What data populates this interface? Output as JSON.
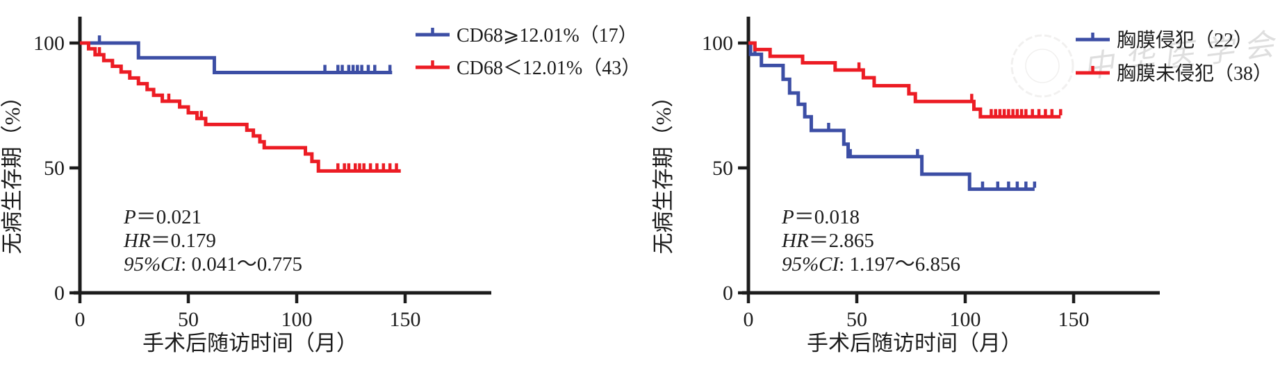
{
  "figure": {
    "background": "#ffffff",
    "axis_color": "#1c1c1c"
  },
  "chart_data": [
    {
      "type": "line",
      "kind": "kaplan-meier-step",
      "title": "",
      "xlabel": "手术后随访时间（月）",
      "ylabel": "无病生存期（%）",
      "x_ticks": [
        0,
        50,
        100,
        150
      ],
      "y_ticks": [
        0,
        50,
        100
      ],
      "xlim": [
        0,
        190
      ],
      "ylim": [
        0,
        110
      ],
      "grid": false,
      "legend_position": "top-right",
      "legend": [
        {
          "label": "CD68⩾12.01%（17）",
          "color": "#3c4ea5"
        },
        {
          "label": "CD68＜12.01%（43）",
          "color": "#ec1c24"
        }
      ],
      "stats": [
        {
          "k": "P",
          "v": "＝0.021"
        },
        {
          "k": "HR",
          "v": "＝0.179"
        },
        {
          "k": "95%CI",
          "v": ": 0.041～0.775"
        }
      ],
      "series": [
        {
          "name": "CD68⩾12.01%",
          "n": 17,
          "color": "#3c4ea5",
          "steps": [
            [
              0,
              100
            ],
            [
              27,
              94.1
            ],
            [
              62,
              88.2
            ],
            [
              144,
              88.2
            ]
          ],
          "censors": [
            [
              9,
              100
            ],
            [
              113,
              88.2
            ],
            [
              119,
              88.2
            ],
            [
              121,
              88.2
            ],
            [
              124,
              88.2
            ],
            [
              126,
              88.2
            ],
            [
              128,
              88.2
            ],
            [
              130,
              88.2
            ],
            [
              133,
              88.2
            ],
            [
              136,
              88.2
            ],
            [
              143,
              88.2
            ]
          ]
        },
        {
          "name": "CD68＜12.01%",
          "n": 43,
          "color": "#ec1c24",
          "steps": [
            [
              0,
              100
            ],
            [
              4,
              97.7
            ],
            [
              7,
              95.3
            ],
            [
              11,
              93
            ],
            [
              15,
              90.7
            ],
            [
              19,
              88.4
            ],
            [
              23,
              86
            ],
            [
              27,
              83.7
            ],
            [
              31,
              81.4
            ],
            [
              34,
              79.1
            ],
            [
              38,
              76.7
            ],
            [
              46,
              74.4
            ],
            [
              50,
              72.1
            ],
            [
              54,
              69.8
            ],
            [
              58,
              67.4
            ],
            [
              77,
              65.1
            ],
            [
              80,
              62.8
            ],
            [
              83,
              60.5
            ],
            [
              85,
              58.1
            ],
            [
              104,
              55.6
            ],
            [
              107,
              52.6
            ],
            [
              110,
              48.8
            ],
            [
              148,
              48.8
            ]
          ],
          "censors": [
            [
              9,
              95.3
            ],
            [
              41,
              76.7
            ],
            [
              56,
              69.8
            ],
            [
              119,
              48.8
            ],
            [
              122,
              48.8
            ],
            [
              124,
              48.8
            ],
            [
              127,
              48.8
            ],
            [
              129,
              48.8
            ],
            [
              131,
              48.8
            ],
            [
              134,
              48.8
            ],
            [
              137,
              48.8
            ],
            [
              140,
              48.8
            ],
            [
              143,
              48.8
            ],
            [
              146,
              48.8
            ]
          ]
        }
      ]
    },
    {
      "type": "line",
      "kind": "kaplan-meier-step",
      "title": "",
      "xlabel": "手术后随访时间（月）",
      "ylabel": "无病生存期（%）",
      "x_ticks": [
        0,
        50,
        100,
        150
      ],
      "y_ticks": [
        0,
        50,
        100
      ],
      "xlim": [
        0,
        190
      ],
      "ylim": [
        0,
        110
      ],
      "grid": false,
      "legend_position": "top-right",
      "legend": [
        {
          "label": "胸膜侵犯（22）",
          "color": "#3c4ea5"
        },
        {
          "label": "胸膜未侵犯（38）",
          "color": "#ec1c24"
        }
      ],
      "stats": [
        {
          "k": "P",
          "v": "＝0.018"
        },
        {
          "k": "HR",
          "v": "＝2.865"
        },
        {
          "k": "95%CI",
          "v": ": 1.197～6.856"
        }
      ],
      "watermark": {
        "seal": true,
        "script_text": "中华医学会",
        "color": "#a39d97",
        "opacity": 0.14
      },
      "series": [
        {
          "name": "胸膜侵犯",
          "n": 22,
          "color": "#3c4ea5",
          "steps": [
            [
              0,
              100
            ],
            [
              1,
              95.5
            ],
            [
              6,
              91
            ],
            [
              16,
              85.5
            ],
            [
              19,
              80
            ],
            [
              23,
              75.5
            ],
            [
              26,
              70.5
            ],
            [
              29,
              65
            ],
            [
              44,
              59.5
            ],
            [
              46,
              54.5
            ],
            [
              80,
              47.5
            ],
            [
              102,
              41.5
            ],
            [
              132,
              41.5
            ]
          ],
          "censors": [
            [
              3,
              95.5
            ],
            [
              37,
              65
            ],
            [
              47,
              54.5
            ],
            [
              78,
              54.5
            ],
            [
              108,
              41.5
            ],
            [
              115,
              41.5
            ],
            [
              120,
              41.5
            ],
            [
              124,
              41.5
            ],
            [
              128,
              41.5
            ],
            [
              132,
              41.5
            ]
          ]
        },
        {
          "name": "胸膜未侵犯",
          "n": 38,
          "color": "#ec1c24",
          "steps": [
            [
              0,
              100
            ],
            [
              3,
              97.4
            ],
            [
              10,
              94.7
            ],
            [
              25,
              92.1
            ],
            [
              40,
              89.2
            ],
            [
              53,
              86.1
            ],
            [
              58,
              82.9
            ],
            [
              74,
              79.7
            ],
            [
              77,
              76.6
            ],
            [
              104,
              73.5
            ],
            [
              107,
              70.5
            ],
            [
              144,
              70.5
            ]
          ],
          "censors": [
            [
              51,
              89.2
            ],
            [
              103,
              76.6
            ],
            [
              112,
              70.5
            ],
            [
              114,
              70.5
            ],
            [
              116,
              70.5
            ],
            [
              118,
              70.5
            ],
            [
              120,
              70.5
            ],
            [
              122,
              70.5
            ],
            [
              124,
              70.5
            ],
            [
              126,
              70.5
            ],
            [
              128,
              70.5
            ],
            [
              131,
              70.5
            ],
            [
              134,
              70.5
            ],
            [
              137,
              70.5
            ],
            [
              140,
              70.5
            ],
            [
              144,
              70.5
            ]
          ]
        }
      ]
    }
  ]
}
